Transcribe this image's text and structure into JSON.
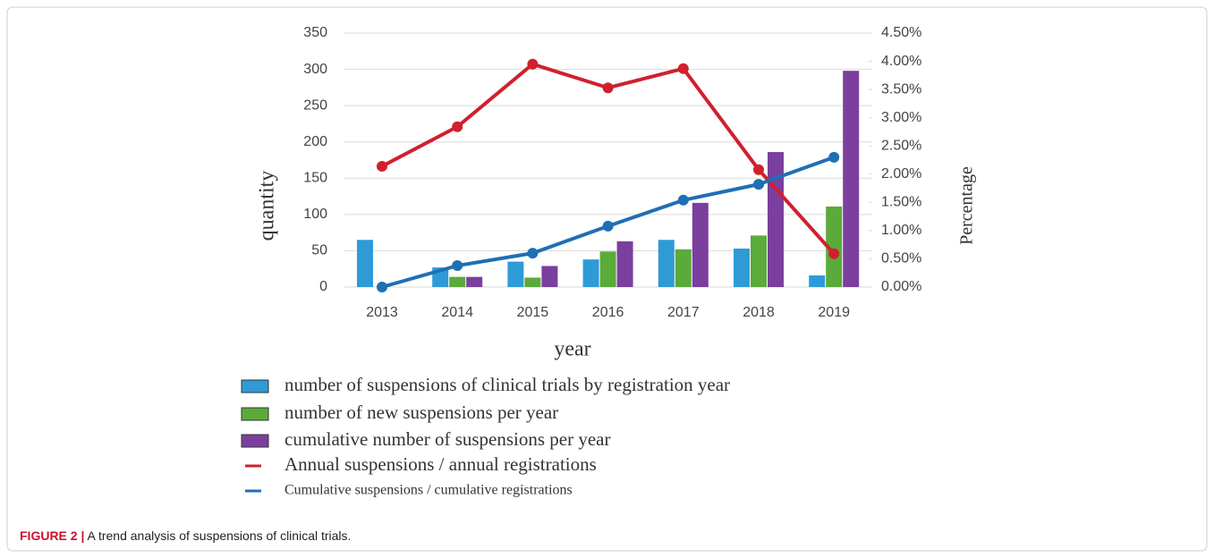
{
  "chart_data": {
    "type": "bar",
    "x_label": "year",
    "y_label": "quantity",
    "y2_label": "Percentage",
    "categories": [
      "2013",
      "2014",
      "2015",
      "2016",
      "2017",
      "2018",
      "2019"
    ],
    "series": [
      {
        "name": "number of suspensions of clinical trials by registration year",
        "type": "bar",
        "color": "#2e9bd6",
        "values": [
          65,
          27,
          35,
          38,
          65,
          53,
          16
        ]
      },
      {
        "name": "number of new suspensions per year",
        "type": "bar",
        "color": "#5aab3a",
        "values": [
          null,
          14,
          13,
          49,
          52,
          71,
          111
        ]
      },
      {
        "name": "cumulative number of suspensions per year",
        "type": "bar",
        "color": "#7b3f9e",
        "values": [
          null,
          14,
          29,
          63,
          116,
          186,
          298
        ]
      },
      {
        "name": "Annual suspensions / annual registrations",
        "type": "line",
        "axis": "y2",
        "color": "#d0202e",
        "values": [
          2.14,
          2.84,
          3.95,
          3.53,
          3.87,
          2.08,
          0.59
        ]
      },
      {
        "name": "Cumulative suspensions / cumulative registrations",
        "type": "line",
        "axis": "y2",
        "color": "#1f6fb5",
        "values": [
          0,
          0.38,
          0.6,
          1.08,
          1.54,
          1.82,
          2.3
        ]
      }
    ],
    "ylim": [
      0,
      350
    ],
    "yticks": [
      0,
      50,
      100,
      150,
      200,
      250,
      300,
      350
    ],
    "y2lim": [
      0,
      4.5
    ],
    "y2ticks": [
      {
        "value": 0,
        "label": "0.00%"
      },
      {
        "value": 0.5,
        "label": "0.50%"
      },
      {
        "value": 1,
        "label": "1.00%"
      },
      {
        "value": 1.5,
        "label": "1.50%"
      },
      {
        "value": 2,
        "label": "2.00%"
      },
      {
        "value": 2.5,
        "label": "2.50%"
      },
      {
        "value": 3,
        "label": "3.00%"
      },
      {
        "value": 3.5,
        "label": "3.50%"
      },
      {
        "value": 4,
        "label": "4.00%"
      },
      {
        "value": 4.5,
        "label": "4.50%"
      }
    ],
    "grid": true
  },
  "caption": {
    "label": "FIGURE 2 |",
    "text": "A trend analysis of suspensions of clinical trials."
  }
}
